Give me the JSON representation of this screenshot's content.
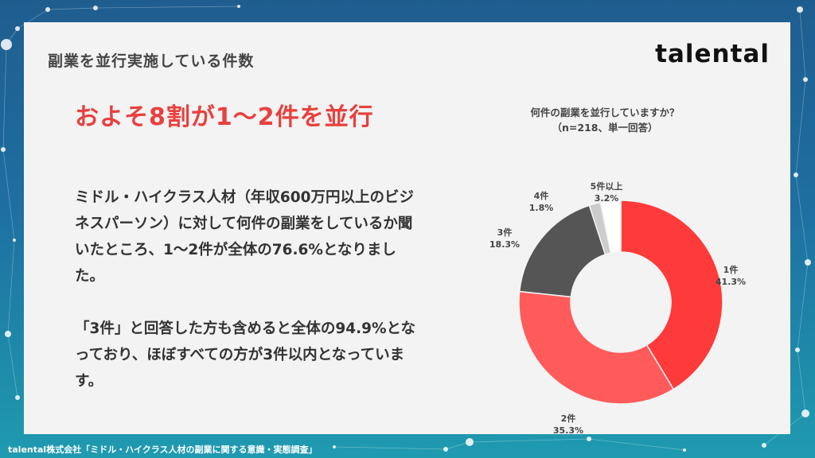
{
  "slide": {
    "section_title": "副業を並行実施している件数",
    "logo": "talental",
    "headline": "およそ8割が1〜2件を並行",
    "paragraph1": "ミドル・ハイクラス人材（年収600万円以上のビジネスパーソン）に対して何件の副業をしているか聞いたところ、1〜2件が全体の76.6%となりました。",
    "paragraph2": "「3件」と回答した方も含めると全体の94.9%となっており、ほぼすべての方が3件以内となっています。",
    "footer": "talental株式会社「ミドル・ハイクラス人材の副業に関する意識・実態調査」"
  },
  "chart_data": {
    "type": "pie",
    "style": "donut",
    "title": "何件の副業を並行していますか？",
    "subtitle": "（n=218、単一回答）",
    "slices": [
      {
        "label": "1件",
        "value": 41.3,
        "display": "41.3%",
        "color": "#ff3a3a"
      },
      {
        "label": "2件",
        "value": 35.3,
        "display": "35.3%",
        "color": "#ff5b5b"
      },
      {
        "label": "3件",
        "value": 18.3,
        "display": "18.3%",
        "color": "#555555"
      },
      {
        "label": "4件",
        "value": 1.8,
        "display": "1.8%",
        "color": "#cccccc"
      },
      {
        "label": "5件以上",
        "value": 3.2,
        "display": "3.2%",
        "color": "#ffffff"
      }
    ],
    "legend": "labels outside slices"
  }
}
